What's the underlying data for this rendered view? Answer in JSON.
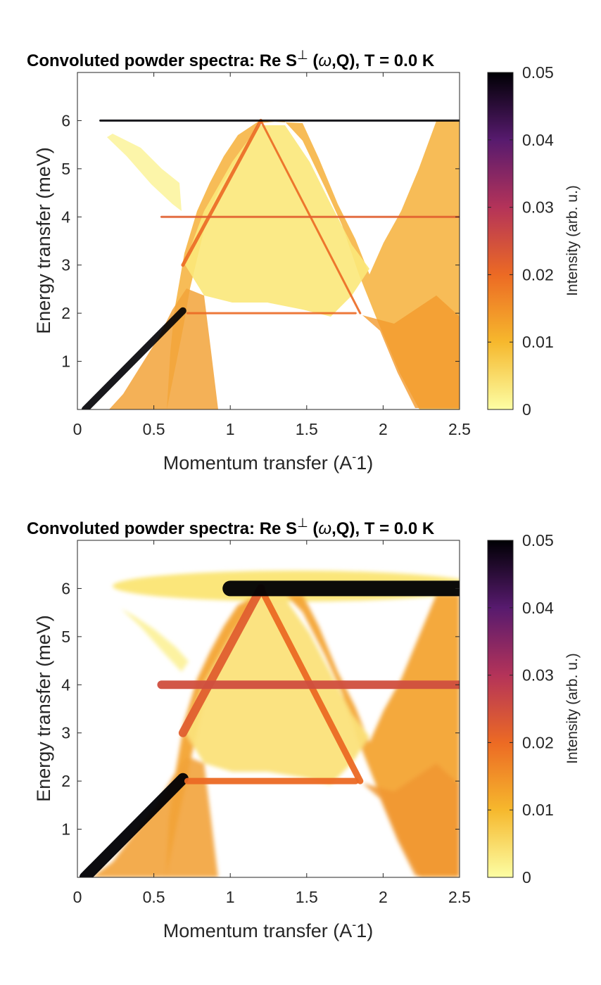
{
  "chart_data": [
    {
      "type": "heatmap",
      "title_main": "Convoluted powder spectra: Re S",
      "title_sup": "⊥",
      "title_omega": "ω",
      "title_tail": ",Q), T =   0.0 K",
      "xlabel": "Momentum transfer (A",
      "xlabel_exp": "-",
      "xlabel_tail": "1)",
      "ylabel": "Energy transfer (meV)",
      "xlim": [
        0,
        2.5
      ],
      "ylim": [
        0,
        7
      ],
      "xticks": [
        "0",
        "0.5",
        "1",
        "1.5",
        "2",
        "2.5"
      ],
      "yticks": [
        "1",
        "2",
        "3",
        "4",
        "5",
        "6"
      ],
      "colorbar_label": "Intensity (arb. u.)",
      "colorbar_ticks": [
        "0",
        "0.01",
        "0.02",
        "0.03",
        "0.04",
        "0.05"
      ],
      "clim": [
        0,
        0.05
      ],
      "colormap": "inferno (reversed)",
      "bands": [
        {
          "name": "",
          "x": [
            0.05,
            0.69
          ],
          "y": [
            0.0,
            2.05
          ],
          "intensity": 0.05
        },
        {
          "name": "",
          "x": [
            0.69,
            1.2
          ],
          "y": [
            3.0,
            6.0
          ],
          "intensity": 0.02
        },
        {
          "name": "",
          "x": [
            1.2,
            1.85
          ],
          "y": [
            6.0,
            2.0
          ],
          "intensity": 0.02
        },
        {
          "name": "",
          "x": [
            0.72,
            1.82
          ],
          "y": [
            2.0,
            2.0
          ],
          "intensity": 0.02
        },
        {
          "name": "",
          "x": [
            0.55,
            2.5
          ],
          "y": [
            4.0,
            4.0
          ],
          "intensity": 0.022
        },
        {
          "name": "",
          "x": [
            0.15,
            2.5
          ],
          "y": [
            6.0,
            6.0
          ],
          "intensity": 0.05
        }
      ]
    },
    {
      "type": "heatmap",
      "title_main": "Convoluted powder spectra: Re S",
      "title_sup": "⊥",
      "title_omega": "ω",
      "title_tail": ",Q), T =   0.0 K",
      "xlabel": "Momentum transfer (A",
      "xlabel_exp": "-",
      "xlabel_tail": "1)",
      "ylabel": "Energy transfer (meV)",
      "xlim": [
        0,
        2.5
      ],
      "ylim": [
        0,
        7
      ],
      "xticks": [
        "0",
        "0.5",
        "1",
        "1.5",
        "2",
        "2.5"
      ],
      "yticks": [
        "1",
        "2",
        "3",
        "4",
        "5",
        "6"
      ],
      "colorbar_label": "Intensity (arb. u.)",
      "colorbar_ticks": [
        "0",
        "0.01",
        "0.02",
        "0.03",
        "0.04",
        "0.05"
      ],
      "clim": [
        0,
        0.05
      ],
      "colormap": "inferno (reversed)",
      "bands": [
        {
          "name": "",
          "x": [
            0.05,
            0.69
          ],
          "y": [
            0.0,
            2.05
          ],
          "intensity": 0.05
        },
        {
          "name": "",
          "x": [
            0.69,
            1.2
          ],
          "y": [
            3.0,
            6.0
          ],
          "intensity": 0.022
        },
        {
          "name": "",
          "x": [
            1.2,
            1.85
          ],
          "y": [
            6.0,
            2.0
          ],
          "intensity": 0.02
        },
        {
          "name": "",
          "x": [
            0.72,
            1.82
          ],
          "y": [
            2.0,
            2.0
          ],
          "intensity": 0.02
        },
        {
          "name": "",
          "x": [
            0.55,
            2.5
          ],
          "y": [
            4.0,
            4.0
          ],
          "intensity": 0.025
        },
        {
          "name": "",
          "x": [
            1.0,
            2.5
          ],
          "y": [
            6.0,
            6.0
          ],
          "intensity": 0.05
        }
      ]
    }
  ]
}
